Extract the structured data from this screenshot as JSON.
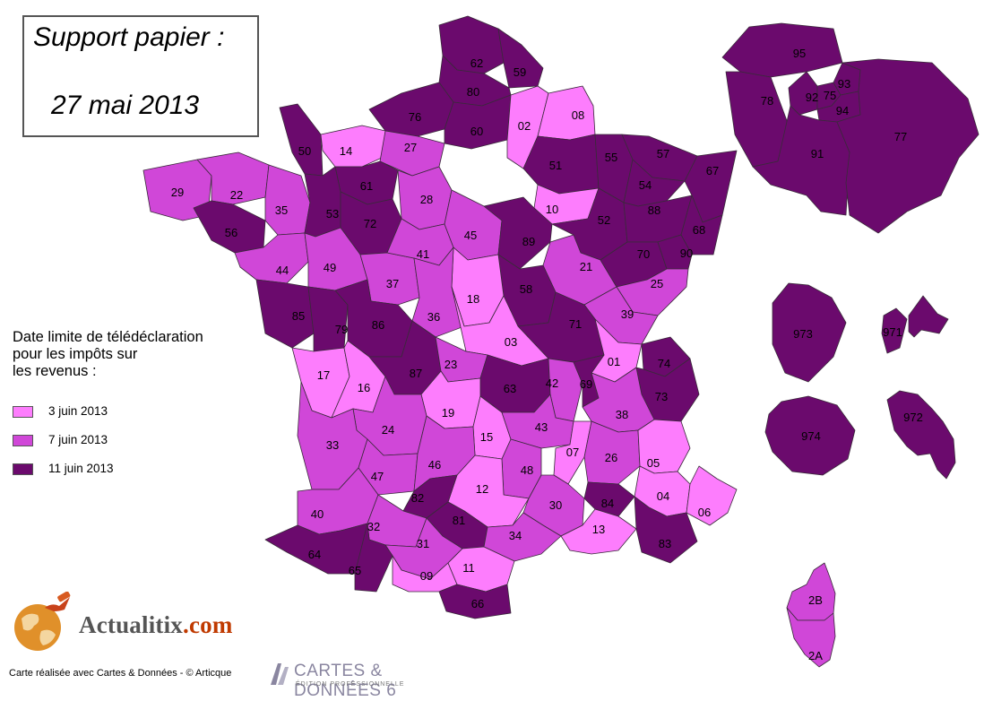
{
  "title": {
    "line1": "Support papier :",
    "line2": "27 mai 2013"
  },
  "legend": {
    "title": "Date limite de télédéclaration\npour les impôts sur\nles revenus :",
    "items": [
      {
        "label": "3 juin 2013",
        "color": "#fd7dfd"
      },
      {
        "label": "7 juin 2013",
        "color": "#d047d8"
      },
      {
        "label": "11 juin 2013",
        "color": "#6b0a6d"
      }
    ]
  },
  "departments": [
    {
      "code": "62",
      "category": 2
    },
    {
      "code": "59",
      "category": 2
    },
    {
      "code": "80",
      "category": 2
    },
    {
      "code": "76",
      "category": 2
    },
    {
      "code": "60",
      "category": 2
    },
    {
      "code": "02",
      "category": 0
    },
    {
      "code": "08",
      "category": 0
    },
    {
      "code": "50",
      "category": 2
    },
    {
      "code": "14",
      "category": 0
    },
    {
      "code": "27",
      "category": 1
    },
    {
      "code": "61",
      "category": 2
    },
    {
      "code": "29",
      "category": 1
    },
    {
      "code": "22",
      "category": 1
    },
    {
      "code": "35",
      "category": 1
    },
    {
      "code": "53",
      "category": 2
    },
    {
      "code": "72",
      "category": 2
    },
    {
      "code": "28",
      "category": 1
    },
    {
      "code": "56",
      "category": 2
    },
    {
      "code": "44",
      "category": 1
    },
    {
      "code": "49",
      "category": 1
    },
    {
      "code": "37",
      "category": 1
    },
    {
      "code": "41",
      "category": 1
    },
    {
      "code": "45",
      "category": 1
    },
    {
      "code": "51",
      "category": 2
    },
    {
      "code": "55",
      "category": 2
    },
    {
      "code": "57",
      "category": 2
    },
    {
      "code": "67",
      "category": 2
    },
    {
      "code": "54",
      "category": 2
    },
    {
      "code": "10",
      "category": 0
    },
    {
      "code": "52",
      "category": 2
    },
    {
      "code": "88",
      "category": 2
    },
    {
      "code": "68",
      "category": 2
    },
    {
      "code": "89",
      "category": 2
    },
    {
      "code": "21",
      "category": 1
    },
    {
      "code": "70",
      "category": 2
    },
    {
      "code": "90",
      "category": 2
    },
    {
      "code": "25",
      "category": 1
    },
    {
      "code": "39",
      "category": 1
    },
    {
      "code": "58",
      "category": 2
    },
    {
      "code": "18",
      "category": 0
    },
    {
      "code": "36",
      "category": 1
    },
    {
      "code": "85",
      "category": 2
    },
    {
      "code": "79",
      "category": 2
    },
    {
      "code": "86",
      "category": 2
    },
    {
      "code": "71",
      "category": 2
    },
    {
      "code": "03",
      "category": 0
    },
    {
      "code": "01",
      "category": 0
    },
    {
      "code": "74",
      "category": 2
    },
    {
      "code": "73",
      "category": 2
    },
    {
      "code": "17",
      "category": 0
    },
    {
      "code": "16",
      "category": 0
    },
    {
      "code": "87",
      "category": 2
    },
    {
      "code": "23",
      "category": 1
    },
    {
      "code": "63",
      "category": 2
    },
    {
      "code": "42",
      "category": 1
    },
    {
      "code": "69",
      "category": 2
    },
    {
      "code": "38",
      "category": 1
    },
    {
      "code": "19",
      "category": 0
    },
    {
      "code": "15",
      "category": 0
    },
    {
      "code": "43",
      "category": 1
    },
    {
      "code": "24",
      "category": 1
    },
    {
      "code": "33",
      "category": 1
    },
    {
      "code": "47",
      "category": 1
    },
    {
      "code": "46",
      "category": 1
    },
    {
      "code": "07",
      "category": 0
    },
    {
      "code": "26",
      "category": 1
    },
    {
      "code": "05",
      "category": 0
    },
    {
      "code": "48",
      "category": 1
    },
    {
      "code": "12",
      "category": 0
    },
    {
      "code": "04",
      "category": 0
    },
    {
      "code": "06",
      "category": 0
    },
    {
      "code": "40",
      "category": 1
    },
    {
      "code": "82",
      "category": 2
    },
    {
      "code": "81",
      "category": 2
    },
    {
      "code": "30",
      "category": 1
    },
    {
      "code": "84",
      "category": 2
    },
    {
      "code": "32",
      "category": 1
    },
    {
      "code": "13",
      "category": 0
    },
    {
      "code": "83",
      "category": 2
    },
    {
      "code": "34",
      "category": 1
    },
    {
      "code": "31",
      "category": 1
    },
    {
      "code": "64",
      "category": 2
    },
    {
      "code": "65",
      "category": 2
    },
    {
      "code": "09",
      "category": 0
    },
    {
      "code": "11",
      "category": 0
    },
    {
      "code": "66",
      "category": 2
    },
    {
      "code": "95",
      "category": 2
    },
    {
      "code": "78",
      "category": 2
    },
    {
      "code": "92",
      "category": 2
    },
    {
      "code": "75",
      "category": 2
    },
    {
      "code": "93",
      "category": 2
    },
    {
      "code": "94",
      "category": 2
    },
    {
      "code": "91",
      "category": 2
    },
    {
      "code": "77",
      "category": 2
    },
    {
      "code": "973",
      "category": 2
    },
    {
      "code": "971",
      "category": 2
    },
    {
      "code": "974",
      "category": 2
    },
    {
      "code": "972",
      "category": 2
    },
    {
      "code": "2B",
      "category": 1
    },
    {
      "code": "2A",
      "category": 1
    }
  ],
  "logo": {
    "brand": "Actualitix",
    "domain": ".com"
  },
  "credit": "Carte réalisée avec Cartes & Données - © Articque",
  "cartes_logo": {
    "main": "CARTES & DONNÉES 6",
    "sub": "ÉDITION PROFESSIONNELLE"
  }
}
